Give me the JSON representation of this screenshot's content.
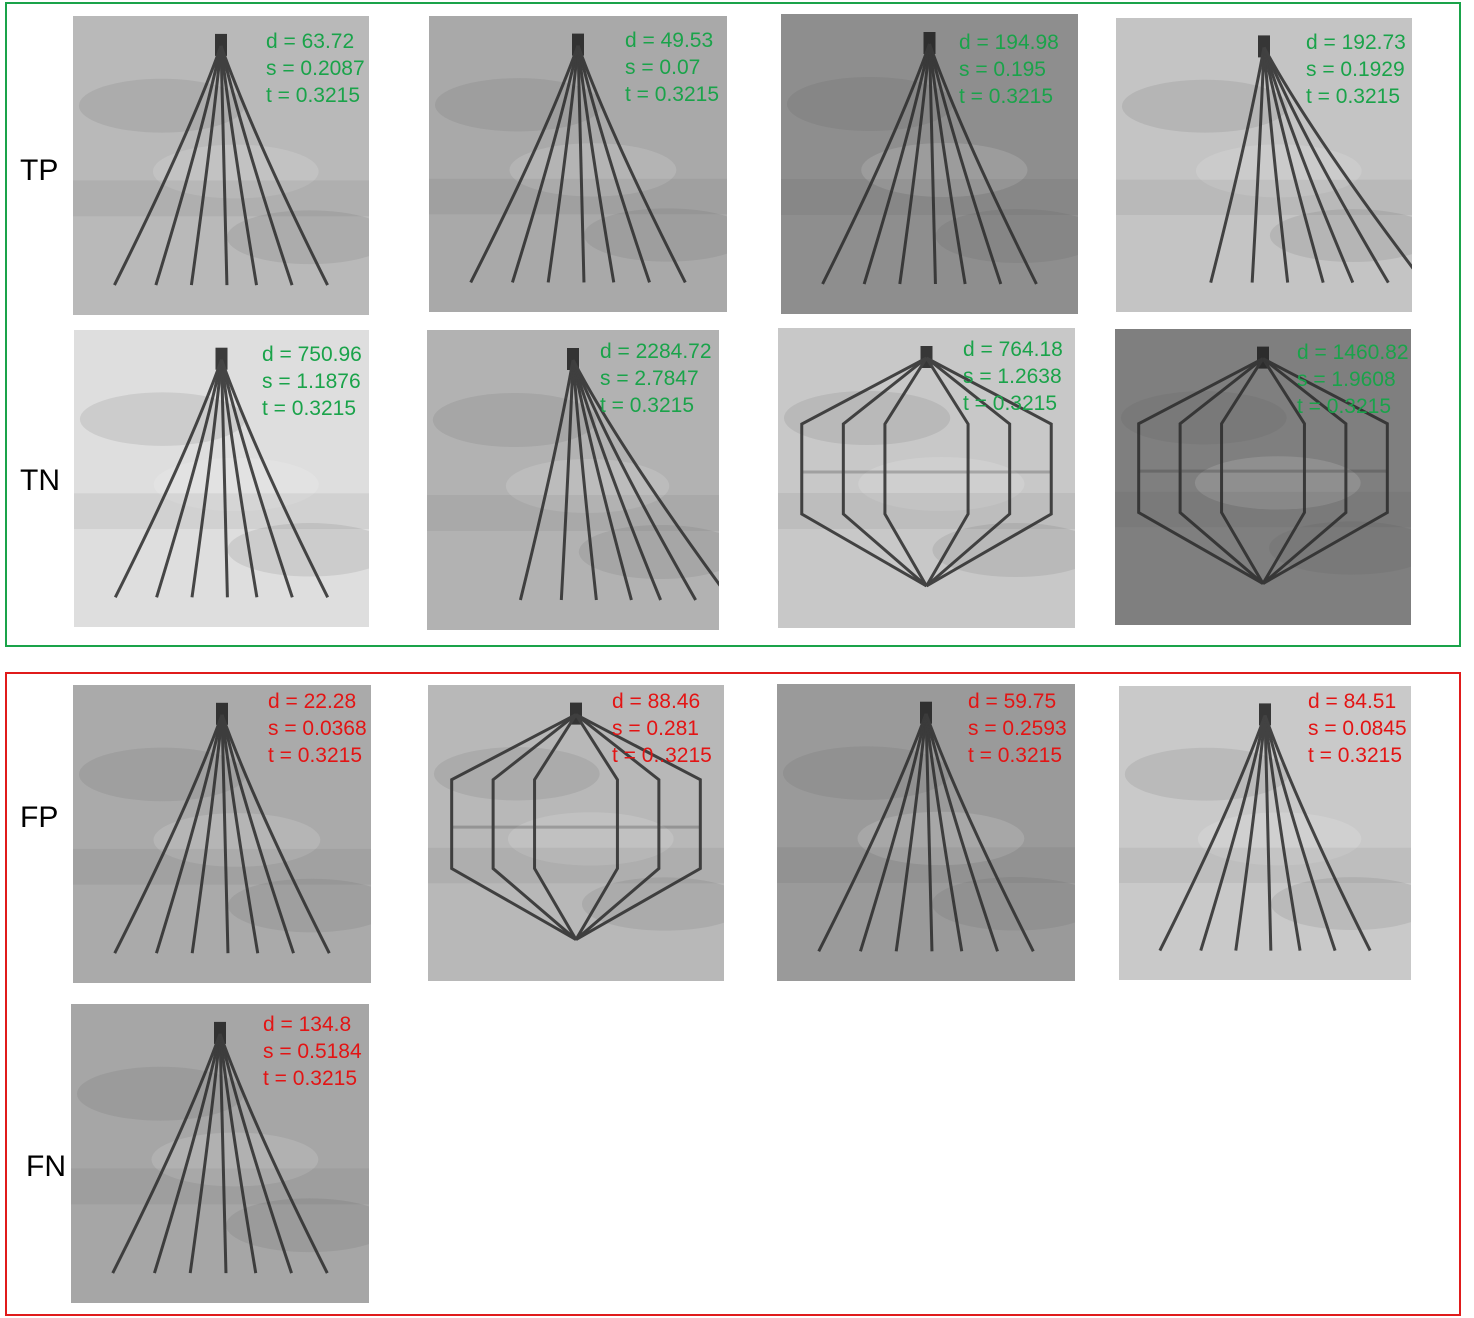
{
  "colors": {
    "correct": "#1aa34a",
    "incorrect": "#e31414"
  },
  "row_labels": {
    "tp": "TP",
    "tn": "TN",
    "fp": "FP",
    "fn": "FN"
  },
  "tiles": [
    {
      "d": "d = 63.72",
      "s": "s = 0.2087",
      "t": "t = 0.3215",
      "filter": "straight"
    },
    {
      "d": "d = 49.53",
      "s": "s = 0.07",
      "t": "t = 0.3215",
      "filter": "straight"
    },
    {
      "d": "d = 194.98",
      "s": "s = 0.195",
      "t": "t = 0.3215",
      "filter": "straight"
    },
    {
      "d": "d = 192.73",
      "s": "s = 0.1929",
      "t": "t = 0.3215",
      "filter": "tilted"
    },
    {
      "d": "d = 750.96",
      "s": "s = 1.1876",
      "t": "t = 0.3215",
      "filter": "straight"
    },
    {
      "d": "d = 2284.72",
      "s": "s = 2.7847",
      "t": "t = 0.3215",
      "filter": "tilted"
    },
    {
      "d": "d = 764.18",
      "s": "s = 1.2638",
      "t": "t = 0.3215",
      "filter": "basket"
    },
    {
      "d": "d = 1460.82",
      "s": "s = 1.9608",
      "t": "t = 0.3215",
      "filter": "basket"
    },
    {
      "d": "d = 22.28",
      "s": "s = 0.0368",
      "t": "t = 0.3215",
      "filter": "straight"
    },
    {
      "d": "d = 88.46",
      "s": "s = 0.281",
      "t": "t = 0..3215",
      "filter": "basket"
    },
    {
      "d": "d = 59.75",
      "s": "s = 0.2593",
      "t": "t = 0.3215",
      "filter": "straight"
    },
    {
      "d": "d = 84.51",
      "s": "s = 0.0845",
      "t": "t = 0.3215",
      "filter": "straight"
    },
    {
      "d": "d = 134.8",
      "s": "s = 0.5184",
      "t": "t = 0.3215",
      "filter": "straight"
    }
  ]
}
